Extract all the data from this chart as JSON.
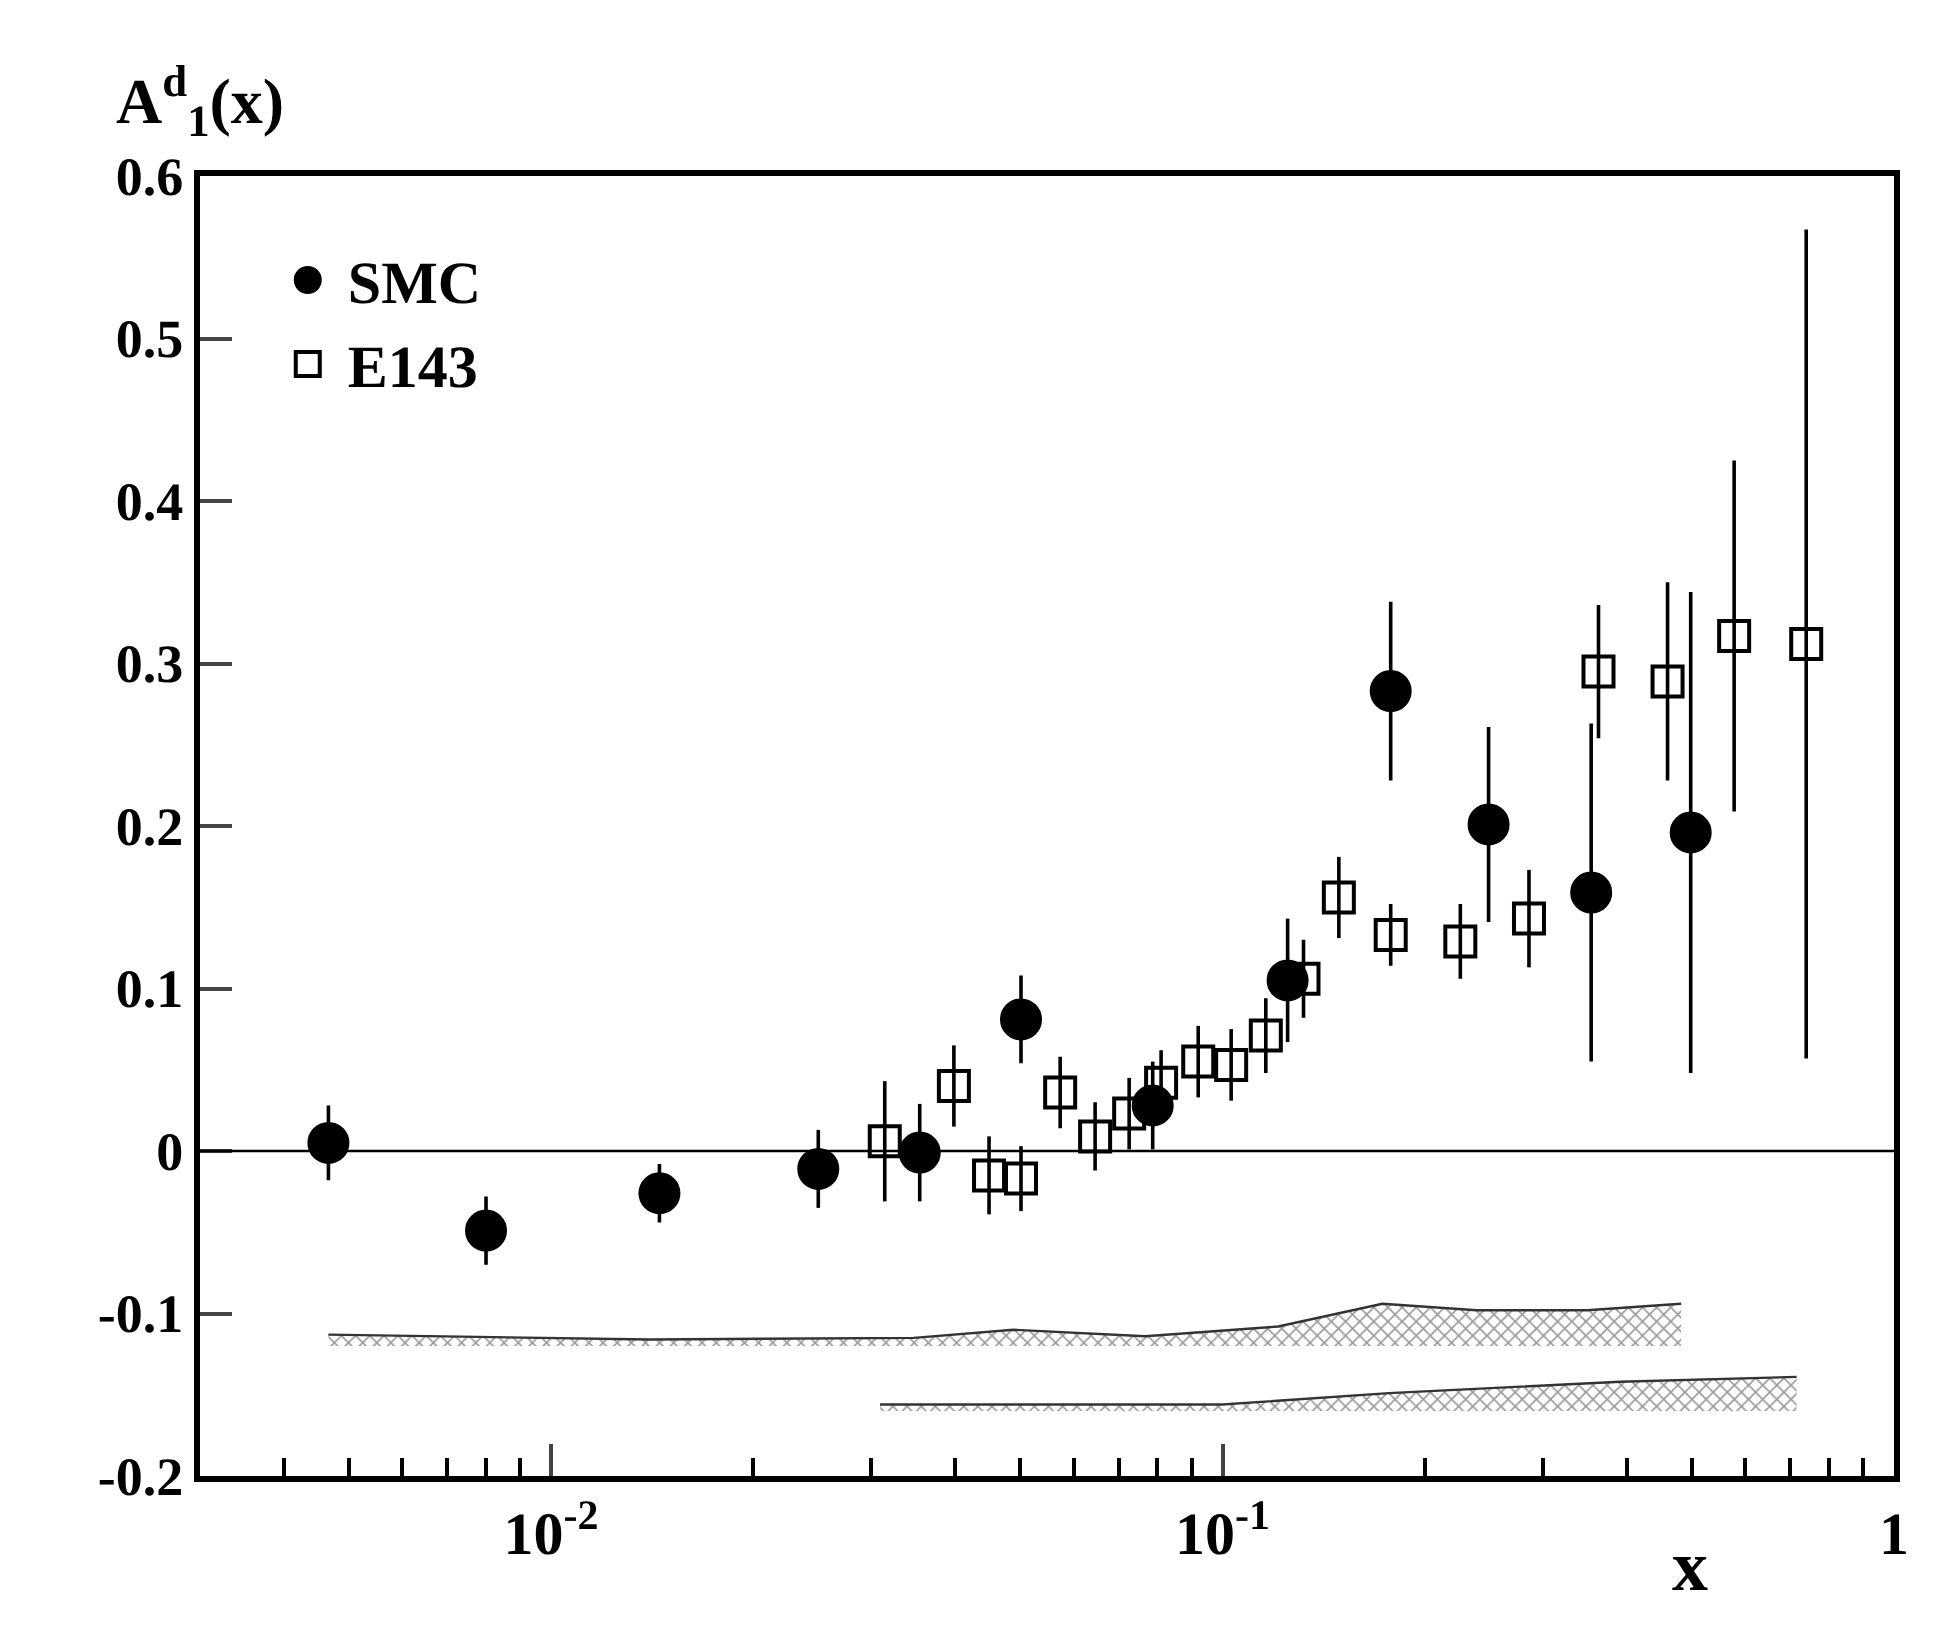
{
  "chart_data": {
    "type": "scatter",
    "xlabel": "x",
    "ylabel": "A$^{d}$$_{1}$(x)",
    "log": "x",
    "xlim": [
      0.003,
      1
    ],
    "xticks": [
      {
        "value": 0.004,
        "label": null
      },
      {
        "value": 0.005,
        "label": null
      },
      {
        "value": 0.006,
        "label": null
      },
      {
        "value": 0.007,
        "label": null
      },
      {
        "value": 0.008,
        "label": null
      },
      {
        "value": 0.009,
        "label": null
      },
      {
        "value": 0.01,
        "label": "10$^{-2}$"
      },
      {
        "value": 0.02,
        "label": null
      },
      {
        "value": 0.03,
        "label": null
      },
      {
        "value": 0.04,
        "label": null
      },
      {
        "value": 0.05,
        "label": null
      },
      {
        "value": 0.06,
        "label": null
      },
      {
        "value": 0.07,
        "label": null
      },
      {
        "value": 0.08,
        "label": null
      },
      {
        "value": 0.09,
        "label": null
      },
      {
        "value": 0.1,
        "label": "10$^{-1}$"
      },
      {
        "value": 0.2,
        "label": null
      },
      {
        "value": 0.3,
        "label": null
      },
      {
        "value": 0.4,
        "label": null
      },
      {
        "value": 0.5,
        "label": null
      },
      {
        "value": 0.6,
        "label": null
      },
      {
        "value": 0.7,
        "label": null
      },
      {
        "value": 0.8,
        "label": null
      },
      {
        "value": 0.9,
        "label": null
      },
      1
    ],
    "ylim": [
      -0.2,
      0.6
    ],
    "yticks": [
      -0.2,
      -0.1,
      0,
      0.1,
      0.2,
      0.3,
      0.4,
      0.5,
      0.6
    ],
    "legend": "top left",
    "ref_lines": [
      {
        "axis": "y",
        "value": 0,
        "color": "#000000"
      }
    ],
    "series": [
      {
        "name": "SMC",
        "color": "#000000",
        "marker": "circle",
        "x": [
          0.00466,
          0.008,
          0.0145,
          0.025,
          0.0354,
          0.0501,
          0.0787,
          0.125,
          0.178,
          0.249,
          0.354,
          0.498
        ],
        "values": [
          0.005,
          -0.049,
          -0.026,
          -0.011,
          -0.001,
          0.081,
          0.028,
          0.105,
          0.283,
          0.201,
          0.159,
          0.196
        ],
        "errors": [
          0.023,
          0.021,
          0.018,
          0.024,
          0.03,
          0.027,
          0.027,
          0.038,
          0.055,
          0.06,
          0.104,
          0.148
        ]
      },
      {
        "name": "E143",
        "color": "#000000",
        "marker": "square",
        "x": [
          0.0314,
          0.0398,
          0.0449,
          0.0501,
          0.0573,
          0.0646,
          0.0726,
          0.081,
          0.092,
          0.103,
          0.116,
          0.132,
          0.149,
          0.178,
          0.226,
          0.286,
          0.363,
          0.46,
          0.578,
          0.74
        ],
        "values": [
          0.006,
          0.04,
          -0.015,
          -0.017,
          0.036,
          0.009,
          0.023,
          0.042,
          0.055,
          0.053,
          0.071,
          0.106,
          0.156,
          0.133,
          0.129,
          0.143,
          0.295,
          0.289,
          0.317,
          0.312
        ],
        "errors": [
          0.037,
          0.025,
          0.024,
          0.02,
          0.022,
          0.021,
          0.022,
          0.02,
          0.022,
          0.022,
          0.023,
          0.024,
          0.025,
          0.019,
          0.023,
          0.03,
          0.041,
          0.061,
          0.108,
          0.255
        ]
      },
      {
        "type": "line",
        "color": "#333333",
        "x": [
          0.00466,
          0.014,
          0.0347,
          0.0488,
          0.0767,
          0.121,
          0.173,
          0.239,
          0.349,
          0.482
        ],
        "values": [
          -0.113,
          -0.116,
          -0.115,
          -0.11,
          -0.114,
          -0.108,
          -0.094,
          -0.098,
          -0.098,
          -0.094
        ],
        "upper": [
          -0.113,
          -0.116,
          -0.115,
          -0.11,
          -0.114,
          -0.108,
          -0.094,
          -0.098,
          -0.098,
          -0.094
        ],
        "lower": [
          -0.12,
          -0.12,
          -0.12,
          -0.12,
          -0.12,
          -0.12,
          -0.12,
          -0.12,
          -0.12,
          -0.12
        ]
      },
      {
        "type": "line",
        "color": "#333333",
        "x": [
          0.0309,
          0.1,
          0.177,
          0.391,
          0.716
        ],
        "values": [
          -0.156,
          -0.156,
          -0.149,
          -0.142,
          -0.139
        ],
        "upper": [
          -0.156,
          -0.156,
          -0.149,
          -0.142,
          -0.139
        ],
        "lower": [
          -0.16,
          -0.16,
          -0.16,
          -0.16,
          -0.16
        ]
      }
    ]
  }
}
